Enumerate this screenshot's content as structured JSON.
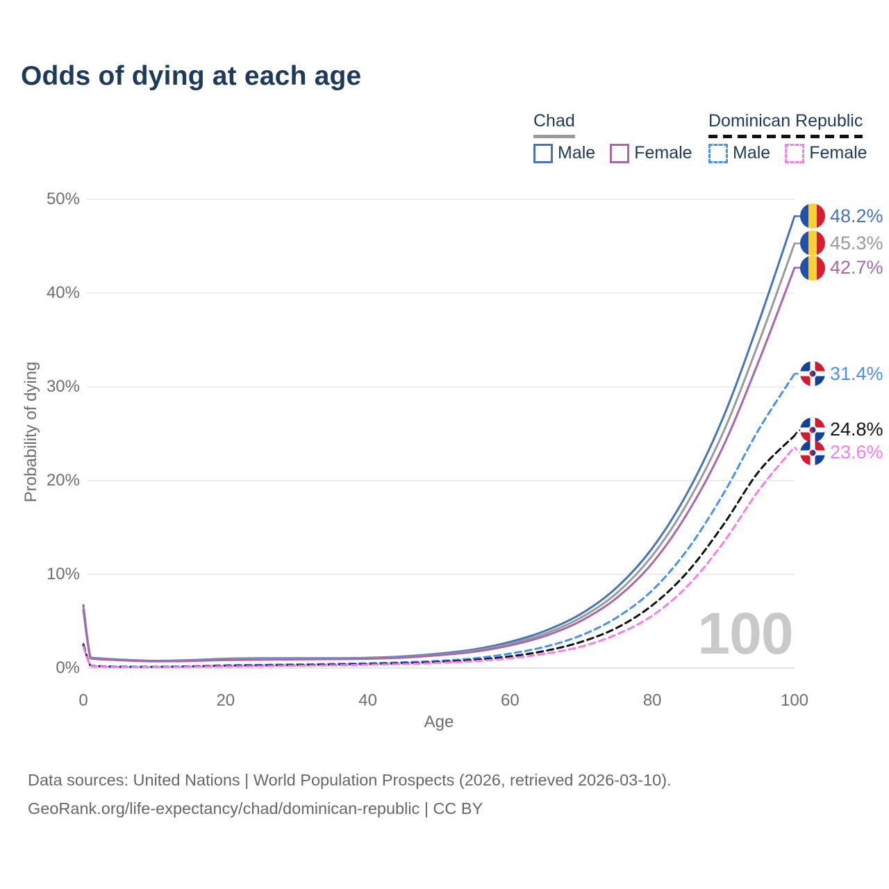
{
  "title": "Odds of dying at each age",
  "colors": {
    "title_text": "#1d3a5c",
    "axis_text": "#6e6e6e",
    "grid": "#e7e7e7",
    "grid_zero": "#dcdcdc",
    "watermark": "#c9c9c9",
    "footer_text": "#666666",
    "background": "#ffffff"
  },
  "flags": {
    "chad": {
      "blue": "#2151a8",
      "yellow": "#f6cf3d",
      "red": "#d41f33"
    },
    "dominican_republic": {
      "blue": "#12419e",
      "red": "#d21a32"
    }
  },
  "legend": {
    "groups": [
      {
        "country": "Chad",
        "underline_series": 1,
        "items": [
          {
            "label": "Male",
            "series": 0
          },
          {
            "label": "Female",
            "series": 2
          }
        ]
      },
      {
        "country": "Dominican Republic",
        "underline_series": 4,
        "items": [
          {
            "label": "Male",
            "series": 3
          },
          {
            "label": "Female",
            "series": 5
          }
        ]
      }
    ]
  },
  "chart_data": {
    "type": "line",
    "title": "Odds of dying at each age",
    "xlabel": "Age",
    "ylabel": "Probability of dying",
    "xlim": [
      0,
      100
    ],
    "ylim_percent": [
      0,
      50
    ],
    "grid": "horizontal",
    "x_ticks": [
      0,
      20,
      40,
      60,
      80,
      100
    ],
    "x_tick_labels": [
      "0",
      "20",
      "40",
      "60",
      "80",
      "100"
    ],
    "y_ticks_percent": [
      0,
      10,
      20,
      30,
      40,
      50
    ],
    "y_tick_labels": [
      "0%",
      "10%",
      "20%",
      "30%",
      "40%",
      "50%"
    ],
    "annotation": "100",
    "x": [
      0,
      1,
      2,
      5,
      10,
      15,
      20,
      25,
      30,
      35,
      40,
      45,
      50,
      55,
      60,
      65,
      70,
      75,
      80,
      85,
      90,
      95,
      100
    ],
    "series": [
      {
        "name": "Chad Male",
        "style": "solid",
        "color": "#4674b9",
        "flag": "chad",
        "end_label": "48.2%",
        "values": [
          6.7,
          1.15,
          1.05,
          0.92,
          0.78,
          0.85,
          1.0,
          1.05,
          1.05,
          1.05,
          1.1,
          1.25,
          1.55,
          2.0,
          2.8,
          4.0,
          5.8,
          8.6,
          12.8,
          18.8,
          26.8,
          37.0,
          48.2
        ]
      },
      {
        "name": "Chad",
        "style": "solid",
        "color": "#9a9a9a",
        "flag": "chad",
        "end_label": "45.3%",
        "values": [
          6.45,
          1.1,
          1.0,
          0.88,
          0.75,
          0.8,
          0.93,
          0.98,
          0.99,
          1.0,
          1.05,
          1.18,
          1.45,
          1.87,
          2.6,
          3.7,
          5.4,
          8.0,
          12.0,
          17.7,
          25.2,
          34.8,
          45.3
        ]
      },
      {
        "name": "Chad Female",
        "style": "solid",
        "color": "#a667ad",
        "flag": "chad",
        "end_label": "42.7%",
        "values": [
          6.2,
          1.05,
          0.96,
          0.85,
          0.72,
          0.76,
          0.86,
          0.9,
          0.93,
          0.96,
          1.0,
          1.12,
          1.38,
          1.75,
          2.42,
          3.45,
          5.05,
          7.5,
          11.2,
          16.6,
          23.7,
          32.8,
          42.7
        ]
      },
      {
        "name": "Dominican Republic Male",
        "style": "dashed",
        "color": "#4a90f0",
        "flag": "dr",
        "end_label": "31.4%",
        "values": [
          2.6,
          0.28,
          0.22,
          0.16,
          0.15,
          0.2,
          0.3,
          0.35,
          0.4,
          0.45,
          0.52,
          0.62,
          0.78,
          1.05,
          1.55,
          2.3,
          3.5,
          5.4,
          8.3,
          12.7,
          18.6,
          25.5,
          31.4
        ]
      },
      {
        "name": "Dominican Republic",
        "style": "dashed",
        "color": "#111111",
        "flag": "dr",
        "end_label": "24.8%",
        "values": [
          2.45,
          0.26,
          0.2,
          0.14,
          0.13,
          0.17,
          0.24,
          0.28,
          0.32,
          0.37,
          0.43,
          0.52,
          0.66,
          0.88,
          1.25,
          1.85,
          2.8,
          4.3,
          6.7,
          10.3,
          15.3,
          21.0,
          24.8
        ]
      },
      {
        "name": "Dominican Republic Female",
        "style": "dashed",
        "color": "#f97bee",
        "flag": "dr",
        "end_label": "23.6%",
        "values": [
          2.3,
          0.24,
          0.18,
          0.12,
          0.11,
          0.14,
          0.18,
          0.21,
          0.25,
          0.3,
          0.36,
          0.44,
          0.56,
          0.75,
          1.05,
          1.55,
          2.3,
          3.6,
          5.6,
          8.8,
          13.4,
          19.0,
          23.6
        ]
      }
    ]
  },
  "footer": {
    "line1": "Data sources: United Nations | World Population Prospects (2026, retrieved 2026-03-10).",
    "line2": "GeoRank.org/life-expectancy/chad/dominican-republic | CC BY"
  }
}
